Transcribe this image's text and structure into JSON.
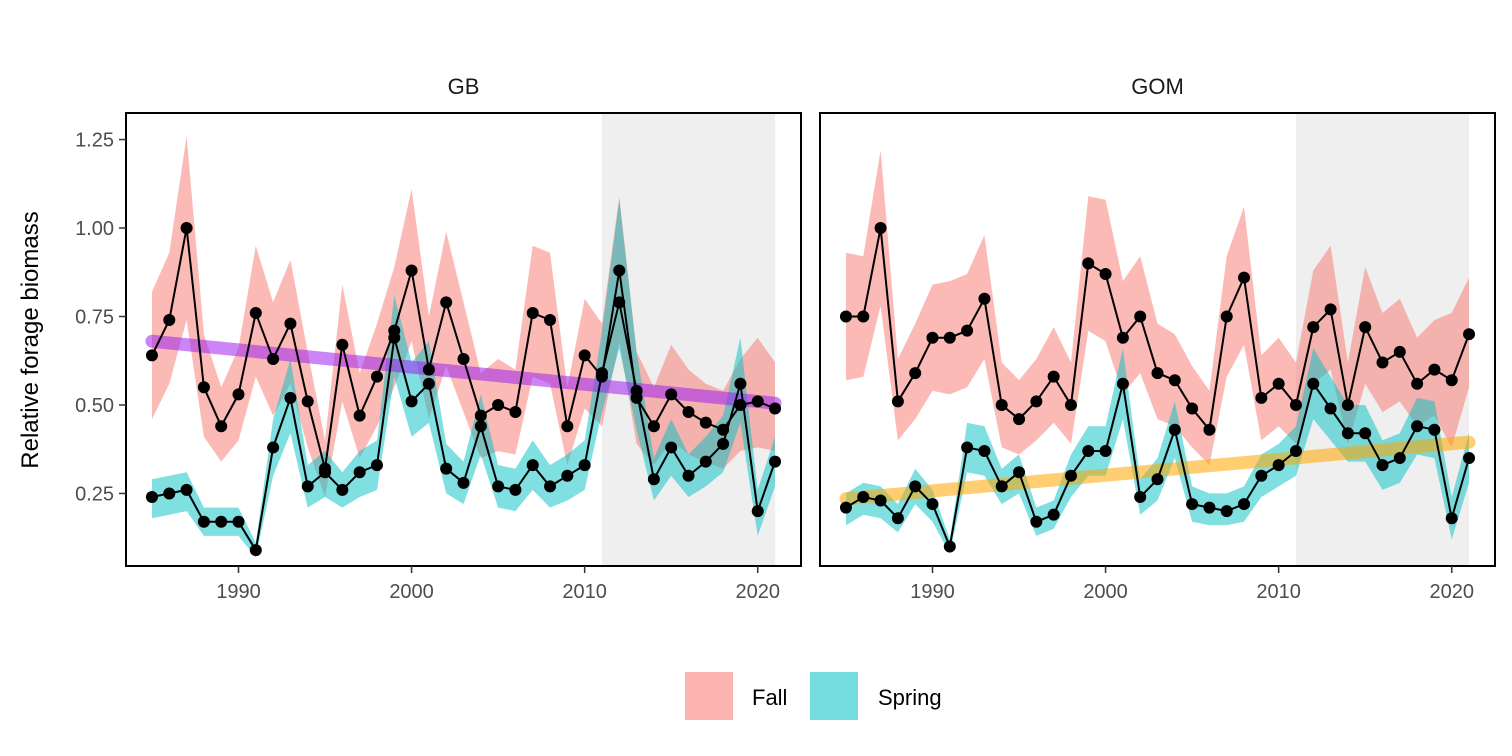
{
  "chart_data": {
    "type": "line",
    "ylabel": "Relative forage biomass",
    "xlabel": "",
    "xlim": [
      1983.5,
      2022.5
    ],
    "ylim": [
      0.045,
      1.325
    ],
    "x_ticks": [
      1990,
      2000,
      2010,
      2020
    ],
    "y_ticks": [
      0.25,
      0.5,
      0.75,
      1.0
    ],
    "y_tick_labels": [
      "0.25",
      "0.50",
      "0.75",
      "1.00",
      "1.25"
    ],
    "y_tick_values": [
      0.25,
      0.5,
      0.75,
      1.0,
      1.25
    ],
    "grid": false,
    "legend_position": "bottom",
    "legend": [
      {
        "label": "Fall",
        "color": "#F8766D"
      },
      {
        "label": "Spring",
        "color": "#00BFC4"
      }
    ],
    "shaded_region": {
      "x_start": 2011,
      "x_end": 2021,
      "color": "#efefef"
    },
    "years": [
      1985,
      1986,
      1987,
      1988,
      1989,
      1990,
      1991,
      1992,
      1993,
      1994,
      1995,
      1996,
      1997,
      1998,
      1999,
      2000,
      2001,
      2002,
      2003,
      2004,
      2005,
      2006,
      2007,
      2008,
      2009,
      2010,
      2011,
      2012,
      2013,
      2014,
      2015,
      2016,
      2017,
      2018,
      2019,
      2020,
      2021
    ],
    "panels": [
      {
        "title": "GB",
        "fall": {
          "values": [
            0.64,
            0.74,
            1.0,
            0.55,
            0.44,
            0.53,
            0.76,
            0.63,
            0.73,
            0.51,
            0.32,
            0.67,
            0.47,
            0.58,
            0.71,
            0.88,
            0.6,
            0.79,
            0.63,
            0.47,
            0.5,
            0.48,
            0.76,
            0.74,
            0.44,
            0.64,
            0.58,
            0.88,
            0.52,
            0.44,
            0.53,
            0.48,
            0.45,
            0.43,
            0.5,
            0.51,
            0.49
          ],
          "lower": [
            0.46,
            0.56,
            0.74,
            0.41,
            0.34,
            0.4,
            0.58,
            0.47,
            0.56,
            0.38,
            0.24,
            0.51,
            0.35,
            0.44,
            0.55,
            0.68,
            0.46,
            0.61,
            0.48,
            0.35,
            0.37,
            0.36,
            0.58,
            0.56,
            0.33,
            0.49,
            0.44,
            0.68,
            0.39,
            0.33,
            0.4,
            0.36,
            0.34,
            0.32,
            0.37,
            0.38,
            0.37
          ],
          "upper": [
            0.82,
            0.93,
            1.26,
            0.7,
            0.55,
            0.66,
            0.95,
            0.79,
            0.91,
            0.65,
            0.4,
            0.84,
            0.59,
            0.73,
            0.89,
            1.11,
            0.75,
            0.99,
            0.79,
            0.59,
            0.63,
            0.6,
            0.95,
            0.93,
            0.55,
            0.8,
            0.73,
            1.09,
            0.65,
            0.55,
            0.67,
            0.6,
            0.56,
            0.54,
            0.63,
            0.69,
            0.62
          ]
        },
        "spring": {
          "values": [
            0.24,
            0.25,
            0.26,
            0.17,
            0.17,
            0.17,
            0.09,
            0.38,
            0.52,
            0.27,
            0.31,
            0.26,
            0.31,
            0.33,
            0.69,
            0.51,
            0.56,
            0.32,
            0.28,
            0.44,
            0.27,
            0.26,
            0.33,
            0.27,
            0.3,
            0.33,
            0.59,
            0.79,
            0.54,
            0.29,
            0.38,
            0.3,
            0.34,
            0.39,
            0.56,
            0.2,
            0.34
          ],
          "lower": [
            0.18,
            0.19,
            0.2,
            0.13,
            0.13,
            0.13,
            0.07,
            0.3,
            0.42,
            0.21,
            0.24,
            0.21,
            0.24,
            0.26,
            0.58,
            0.41,
            0.45,
            0.25,
            0.22,
            0.36,
            0.21,
            0.2,
            0.26,
            0.21,
            0.23,
            0.26,
            0.48,
            0.66,
            0.43,
            0.23,
            0.3,
            0.24,
            0.27,
            0.31,
            0.45,
            0.13,
            0.27
          ],
          "upper": [
            0.29,
            0.3,
            0.31,
            0.21,
            0.21,
            0.21,
            0.11,
            0.46,
            0.63,
            0.33,
            0.37,
            0.31,
            0.37,
            0.4,
            0.81,
            0.62,
            0.68,
            0.39,
            0.34,
            0.53,
            0.33,
            0.32,
            0.4,
            0.33,
            0.36,
            0.4,
            0.71,
            1.08,
            0.65,
            0.35,
            0.46,
            0.36,
            0.41,
            0.47,
            0.69,
            0.26,
            0.41
          ]
        },
        "trend": {
          "series": "Fall",
          "color": "#a020f0",
          "start": [
            1985,
            0.68
          ],
          "end": [
            2021,
            0.505
          ]
        }
      },
      {
        "title": "GOM",
        "fall": {
          "values": [
            0.75,
            0.75,
            1.0,
            0.51,
            0.59,
            0.69,
            0.69,
            0.71,
            0.8,
            0.5,
            0.46,
            0.51,
            0.58,
            0.5,
            0.9,
            0.87,
            0.69,
            0.75,
            0.59,
            0.57,
            0.49,
            0.43,
            0.75,
            0.86,
            0.52,
            0.56,
            0.5,
            0.72,
            0.77,
            0.5,
            0.72,
            0.62,
            0.65,
            0.56,
            0.6,
            0.57,
            0.7
          ],
          "lower": [
            0.57,
            0.58,
            0.78,
            0.4,
            0.46,
            0.54,
            0.53,
            0.55,
            0.63,
            0.38,
            0.36,
            0.4,
            0.45,
            0.39,
            0.71,
            0.68,
            0.53,
            0.59,
            0.46,
            0.44,
            0.38,
            0.33,
            0.58,
            0.67,
            0.4,
            0.44,
            0.39,
            0.56,
            0.6,
            0.39,
            0.56,
            0.48,
            0.51,
            0.44,
            0.47,
            0.38,
            0.55
          ],
          "upper": [
            0.93,
            0.92,
            1.22,
            0.63,
            0.73,
            0.84,
            0.85,
            0.87,
            0.98,
            0.62,
            0.57,
            0.63,
            0.72,
            0.62,
            1.09,
            1.08,
            0.85,
            0.92,
            0.73,
            0.7,
            0.61,
            0.54,
            0.92,
            1.06,
            0.64,
            0.69,
            0.62,
            0.88,
            0.95,
            0.62,
            0.89,
            0.76,
            0.8,
            0.69,
            0.74,
            0.76,
            0.86
          ]
        },
        "spring": {
          "values": [
            0.21,
            0.24,
            0.23,
            0.18,
            0.27,
            0.22,
            0.1,
            0.38,
            0.37,
            0.27,
            0.31,
            0.17,
            0.19,
            0.3,
            0.37,
            0.37,
            0.56,
            0.24,
            0.29,
            0.43,
            0.22,
            0.21,
            0.2,
            0.22,
            0.3,
            0.33,
            0.37,
            0.56,
            0.49,
            0.42,
            0.42,
            0.33,
            0.35,
            0.44,
            0.43,
            0.18,
            0.35
          ],
          "lower": [
            0.16,
            0.19,
            0.18,
            0.14,
            0.22,
            0.17,
            0.08,
            0.31,
            0.3,
            0.22,
            0.25,
            0.13,
            0.15,
            0.24,
            0.3,
            0.3,
            0.46,
            0.19,
            0.23,
            0.35,
            0.17,
            0.16,
            0.16,
            0.17,
            0.24,
            0.27,
            0.3,
            0.46,
            0.4,
            0.34,
            0.34,
            0.26,
            0.28,
            0.36,
            0.35,
            0.12,
            0.28
          ],
          "upper": [
            0.25,
            0.28,
            0.27,
            0.22,
            0.32,
            0.26,
            0.12,
            0.45,
            0.44,
            0.32,
            0.36,
            0.21,
            0.23,
            0.36,
            0.44,
            0.44,
            0.66,
            0.29,
            0.35,
            0.51,
            0.27,
            0.25,
            0.25,
            0.27,
            0.36,
            0.39,
            0.44,
            0.66,
            0.58,
            0.5,
            0.5,
            0.4,
            0.42,
            0.52,
            0.51,
            0.24,
            0.42
          ]
        },
        "trend": {
          "series": "Spring",
          "color": "#ffa500",
          "start": [
            1985,
            0.235
          ],
          "end": [
            2021,
            0.395
          ]
        }
      }
    ]
  }
}
